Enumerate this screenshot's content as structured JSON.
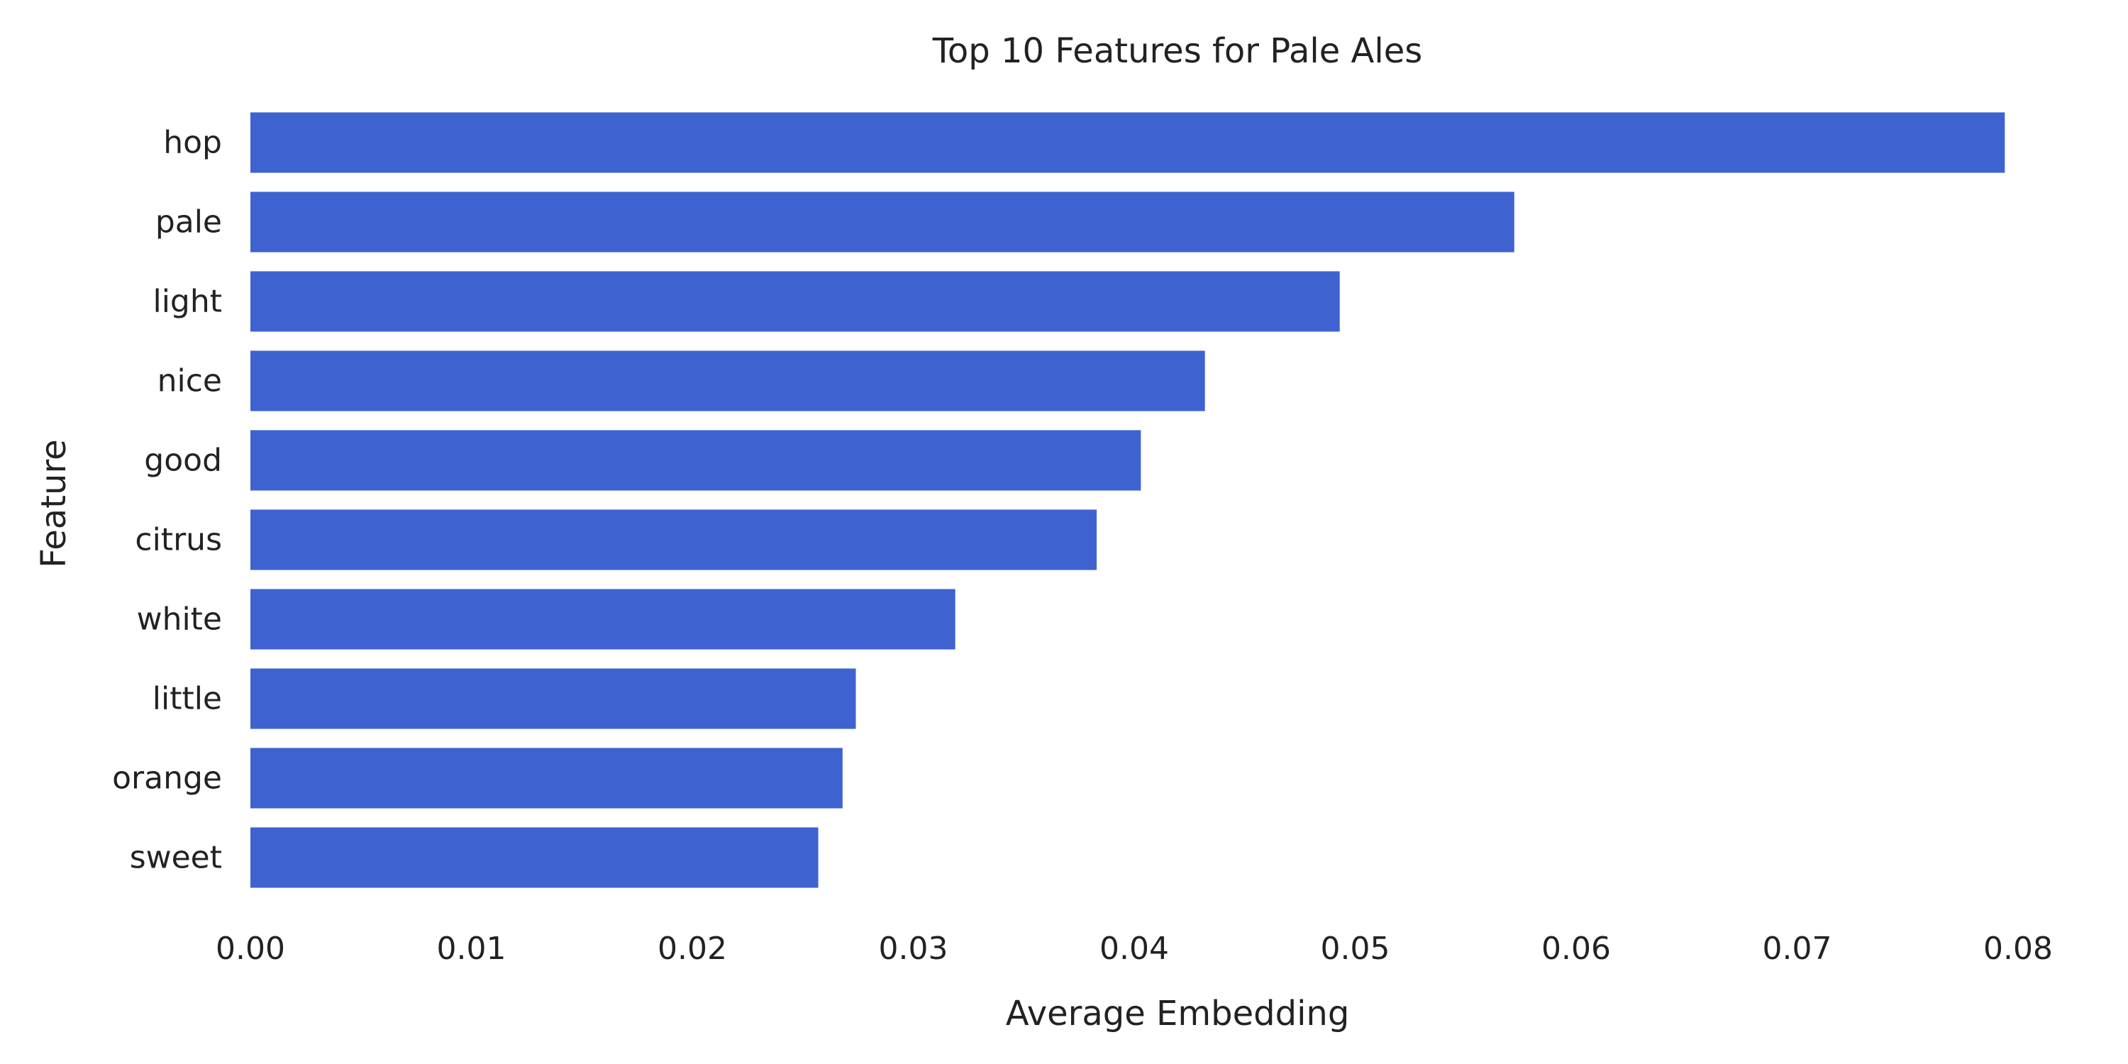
{
  "chart_data": {
    "type": "bar",
    "orientation": "horizontal",
    "title": "Top 10 Features for Pale Ales",
    "xlabel": "Average Embedding",
    "ylabel": "Feature",
    "categories": [
      "hop",
      "pale",
      "light",
      "nice",
      "good",
      "citrus",
      "white",
      "little",
      "orange",
      "sweet"
    ],
    "values": [
      0.0794,
      0.0572,
      0.0493,
      0.0432,
      0.0403,
      0.0383,
      0.0319,
      0.0274,
      0.0268,
      0.0257
    ],
    "xlim": [
      0.0,
      0.08
    ],
    "xticks": [
      "0.00",
      "0.01",
      "0.02",
      "0.03",
      "0.04",
      "0.05",
      "0.06",
      "0.07",
      "0.08"
    ],
    "grid": false,
    "bar_color": "#3e63d0"
  }
}
